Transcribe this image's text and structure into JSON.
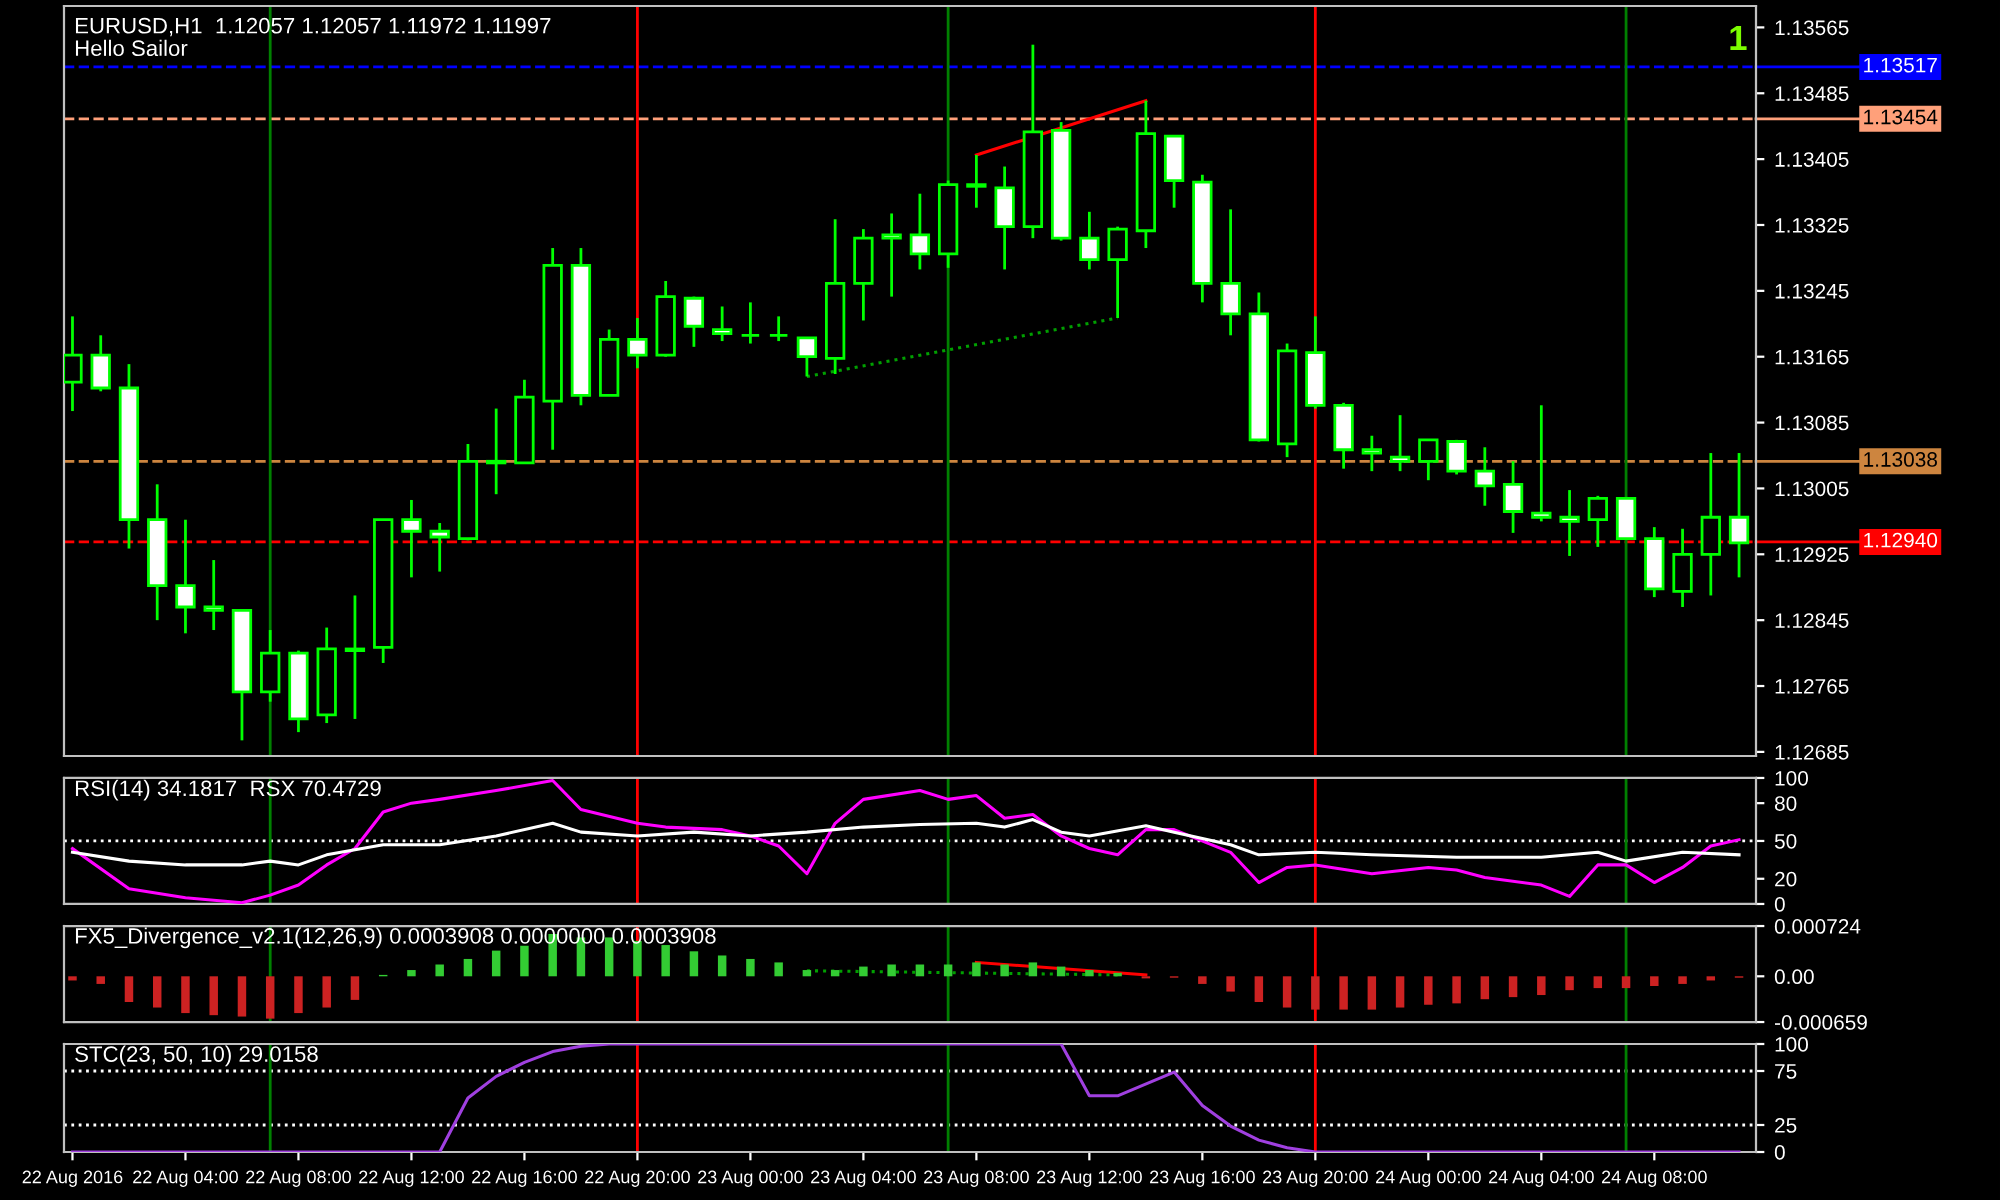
{
  "chart_data": [
    {
      "type": "candlestick",
      "title": "EURUSD,H1  1.12057 1.12057 1.11972 1.11997",
      "annotations": [
        "Hello Sailor",
        "1"
      ],
      "color": "#00ff00",
      "x": [
        "2016-08-22T00:00",
        "2016-08-22T01:00",
        "2016-08-22T02:00",
        "2016-08-22T03:00",
        "2016-08-22T04:00",
        "2016-08-22T05:00",
        "2016-08-22T06:00",
        "2016-08-22T07:00",
        "2016-08-22T08:00",
        "2016-08-22T09:00",
        "2016-08-22T10:00",
        "2016-08-22T11:00",
        "2016-08-22T12:00",
        "2016-08-22T13:00",
        "2016-08-22T14:00",
        "2016-08-22T15:00",
        "2016-08-22T16:00",
        "2016-08-22T17:00",
        "2016-08-22T18:00",
        "2016-08-22T19:00",
        "2016-08-22T20:00",
        "2016-08-22T21:00",
        "2016-08-22T22:00",
        "2016-08-22T23:00",
        "2016-08-23T00:00",
        "2016-08-23T01:00",
        "2016-08-23T02:00",
        "2016-08-23T03:00",
        "2016-08-23T04:00",
        "2016-08-23T05:00",
        "2016-08-23T06:00",
        "2016-08-23T07:00",
        "2016-08-23T08:00",
        "2016-08-23T09:00",
        "2016-08-23T10:00",
        "2016-08-23T11:00",
        "2016-08-23T12:00",
        "2016-08-23T13:00",
        "2016-08-23T14:00",
        "2016-08-23T15:00",
        "2016-08-23T16:00",
        "2016-08-23T17:00",
        "2016-08-23T18:00",
        "2016-08-23T19:00",
        "2016-08-23T20:00",
        "2016-08-23T21:00",
        "2016-08-23T22:00",
        "2016-08-23T23:00",
        "2016-08-24T00:00",
        "2016-08-24T01:00",
        "2016-08-24T02:00",
        "2016-08-24T03:00",
        "2016-08-24T04:00",
        "2016-08-24T05:00",
        "2016-08-24T06:00",
        "2016-08-24T07:00",
        "2016-08-24T08:00",
        "2016-08-24T09:00",
        "2016-08-24T10:00",
        "2016-08-24T11:00"
      ],
      "ohlc": [
        [
          1.13134,
          1.13214,
          1.13099,
          1.13167
        ],
        [
          1.13167,
          1.13191,
          1.13123,
          1.13127
        ],
        [
          1.13127,
          1.13156,
          1.12932,
          1.12967
        ],
        [
          1.12967,
          1.1301,
          1.12845,
          1.12887
        ],
        [
          1.12887,
          1.12967,
          1.12829,
          1.12861
        ],
        [
          1.12861,
          1.12918,
          1.12833,
          1.12857
        ],
        [
          1.12857,
          1.12857,
          1.12699,
          1.12758
        ],
        [
          1.12758,
          1.12833,
          1.12746,
          1.12805
        ],
        [
          1.12805,
          1.12808,
          1.12709,
          1.12725
        ],
        [
          1.1273,
          1.12836,
          1.1272,
          1.1281
        ],
        [
          1.12808,
          1.12875,
          1.12725,
          1.1281
        ],
        [
          1.12812,
          1.12967,
          1.12793,
          1.12967
        ],
        [
          1.12967,
          1.12991,
          1.12897,
          1.12953
        ],
        [
          1.12953,
          1.12963,
          1.12904,
          1.12946
        ],
        [
          1.12944,
          1.13059,
          1.12942,
          1.13038
        ],
        [
          1.13038,
          1.13102,
          1.12998,
          1.13036
        ],
        [
          1.13036,
          1.13137,
          1.13036,
          1.13116
        ],
        [
          1.13111,
          1.13297,
          1.13052,
          1.13276
        ],
        [
          1.13276,
          1.13297,
          1.13106,
          1.13118
        ],
        [
          1.13118,
          1.13198,
          1.13118,
          1.13186
        ],
        [
          1.13186,
          1.13212,
          1.13151,
          1.13167
        ],
        [
          1.13167,
          1.13257,
          1.13165,
          1.13238
        ],
        [
          1.13236,
          1.13238,
          1.13177,
          1.13202
        ],
        [
          1.13198,
          1.13226,
          1.13184,
          1.13193
        ],
        [
          1.13191,
          1.13231,
          1.13181,
          1.13191
        ],
        [
          1.13191,
          1.13214,
          1.13184,
          1.13191
        ],
        [
          1.13188,
          1.13188,
          1.13141,
          1.13165
        ],
        [
          1.13163,
          1.13332,
          1.13144,
          1.13254
        ],
        [
          1.13254,
          1.1332,
          1.13209,
          1.13309
        ],
        [
          1.13313,
          1.13339,
          1.13238,
          1.13309
        ],
        [
          1.13313,
          1.13363,
          1.13271,
          1.1329
        ],
        [
          1.1329,
          1.13379,
          1.13273,
          1.13374
        ],
        [
          1.13374,
          1.1341,
          1.13346,
          1.13372
        ],
        [
          1.1337,
          1.13396,
          1.13271,
          1.13323
        ],
        [
          1.13323,
          1.13544,
          1.13309,
          1.13438
        ],
        [
          1.1344,
          1.1345,
          1.13306,
          1.13309
        ],
        [
          1.13309,
          1.13341,
          1.13271,
          1.13283
        ],
        [
          1.13283,
          1.13323,
          1.13212,
          1.1332
        ],
        [
          1.13318,
          1.13476,
          1.13297,
          1.13436
        ],
        [
          1.13433,
          1.13433,
          1.13346,
          1.13379
        ],
        [
          1.13377,
          1.13386,
          1.13231,
          1.13254
        ],
        [
          1.13254,
          1.13344,
          1.13191,
          1.13217
        ],
        [
          1.13217,
          1.13243,
          1.13062,
          1.13064
        ],
        [
          1.13059,
          1.13181,
          1.13043,
          1.13172
        ],
        [
          1.1317,
          1.13214,
          1.13102,
          1.13106
        ],
        [
          1.13106,
          1.13109,
          1.13029,
          1.13052
        ],
        [
          1.13052,
          1.13069,
          1.13026,
          1.13048
        ],
        [
          1.13043,
          1.13094,
          1.13026,
          1.13038
        ],
        [
          1.13038,
          1.13064,
          1.13015,
          1.13064
        ],
        [
          1.13062,
          1.13064,
          1.13022,
          1.13026
        ],
        [
          1.13026,
          1.13055,
          1.12984,
          1.13008
        ],
        [
          1.1301,
          1.13038,
          1.12951,
          1.12977
        ],
        [
          1.12975,
          1.13106,
          1.12965,
          1.1297
        ],
        [
          1.1297,
          1.13003,
          1.12923,
          1.12965
        ],
        [
          1.12967,
          1.12996,
          1.12934,
          1.12993
        ],
        [
          1.12993,
          1.12993,
          1.12944,
          1.12944
        ],
        [
          1.12944,
          1.12958,
          1.12873,
          1.12883
        ],
        [
          1.1288,
          1.12956,
          1.12861,
          1.12925
        ],
        [
          1.12925,
          1.13048,
          1.12875,
          1.1297
        ],
        [
          1.1297,
          1.13048,
          1.12897,
          1.12939
        ]
      ],
      "series": [
        {
          "type": "line",
          "color": "#ff0000",
          "x": [
            "2016-08-23T08:00",
            "2016-08-23T14:00"
          ],
          "values": [
            1.1341,
            1.13476
          ]
        },
        {
          "type": "line",
          "color": "#00a000",
          "line_style": "dotted",
          "x": [
            "2016-08-23T02:00",
            "2016-08-23T13:00"
          ],
          "values": [
            1.13141,
            1.13212
          ]
        }
      ],
      "ref_lines": [
        {
          "axis": "y",
          "value": 1.13517,
          "label": "1.13517",
          "color": "#0000ff",
          "line_style": "dashed"
        },
        {
          "axis": "y",
          "value": 1.13454,
          "label": "1.13454",
          "color": "#ffa07a",
          "line_style": "dashed"
        },
        {
          "axis": "y",
          "value": 1.13038,
          "label": "1.13038",
          "color": "#cd853f",
          "line_style": "dashed"
        },
        {
          "axis": "y",
          "value": 1.1294,
          "label": "1.12940",
          "color": "#ff0000",
          "line_style": "dashed"
        },
        {
          "axis": "x",
          "value": "2016-08-22T07:00",
          "color": "#008000"
        },
        {
          "axis": "x",
          "value": "2016-08-22T20:00",
          "color": "#ff0000"
        },
        {
          "axis": "x",
          "value": "2016-08-23T07:00",
          "color": "#008000"
        },
        {
          "axis": "x",
          "value": "2016-08-23T20:00",
          "color": "#ff0000"
        },
        {
          "axis": "x",
          "value": "2016-08-24T07:00",
          "color": "#008000"
        }
      ],
      "xlim": [
        "2016-08-21T23:42",
        "2016-08-24T11:36"
      ],
      "ylim": [
        1.1268,
        1.13591
      ],
      "yticks": [
        1.13565,
        1.13485,
        1.13405,
        1.13325,
        1.13245,
        1.13165,
        1.13085,
        1.13005,
        1.12925,
        1.12845,
        1.12765,
        1.12685
      ],
      "tick_labels": "y"
    },
    {
      "type": "line",
      "title": "RSI(14) 34.1817  RSX 70.4729",
      "series": [
        {
          "color": "#ff00ff",
          "x": [
            "2016-08-22T00:00",
            "2016-08-22T02:00",
            "2016-08-22T04:00",
            "2016-08-22T06:00",
            "2016-08-22T07:00",
            "2016-08-22T08:00",
            "2016-08-22T09:00",
            "2016-08-22T10:00",
            "2016-08-22T11:00",
            "2016-08-22T12:00",
            "2016-08-22T13:00",
            "2016-08-22T15:00",
            "2016-08-22T17:00",
            "2016-08-22T18:00",
            "2016-08-22T20:00",
            "2016-08-22T21:00",
            "2016-08-22T23:00",
            "2016-08-23T00:00",
            "2016-08-23T01:00",
            "2016-08-23T02:00",
            "2016-08-23T03:00",
            "2016-08-23T04:00",
            "2016-08-23T06:00",
            "2016-08-23T07:00",
            "2016-08-23T08:00",
            "2016-08-23T09:00",
            "2016-08-23T10:00",
            "2016-08-23T11:00",
            "2016-08-23T12:00",
            "2016-08-23T13:00",
            "2016-08-23T14:00",
            "2016-08-23T15:00",
            "2016-08-23T17:00",
            "2016-08-23T18:00",
            "2016-08-23T19:00",
            "2016-08-23T20:00",
            "2016-08-23T22:00",
            "2016-08-24T00:00",
            "2016-08-24T01:00",
            "2016-08-24T02:00",
            "2016-08-24T04:00",
            "2016-08-24T05:00",
            "2016-08-24T06:00",
            "2016-08-24T07:00",
            "2016-08-24T08:00",
            "2016-08-24T09:00",
            "2016-08-24T10:00",
            "2016-08-24T11:00"
          ],
          "values": [
            44,
            12,
            5,
            1,
            7,
            15,
            31,
            44,
            73,
            80,
            83,
            90,
            98,
            75,
            64,
            61,
            59,
            54,
            46,
            24,
            64,
            83,
            90,
            83,
            86,
            68,
            71,
            54,
            44,
            39,
            59,
            59,
            41,
            17,
            29,
            31,
            24,
            29,
            27,
            21,
            15,
            6,
            31,
            31,
            17,
            29,
            46,
            51
          ]
        },
        {
          "color": "#ffffff",
          "x": [
            "2016-08-22T00:00",
            "2016-08-22T02:00",
            "2016-08-22T04:00",
            "2016-08-22T06:00",
            "2016-08-22T07:00",
            "2016-08-22T08:00",
            "2016-08-22T09:00",
            "2016-08-22T11:00",
            "2016-08-22T13:00",
            "2016-08-22T15:00",
            "2016-08-22T17:00",
            "2016-08-22T18:00",
            "2016-08-22T20:00",
            "2016-08-22T22:00",
            "2016-08-23T00:00",
            "2016-08-23T02:00",
            "2016-08-23T04:00",
            "2016-08-23T06:00",
            "2016-08-23T08:00",
            "2016-08-23T09:00",
            "2016-08-23T10:00",
            "2016-08-23T11:00",
            "2016-08-23T12:00",
            "2016-08-23T14:00",
            "2016-08-23T15:00",
            "2016-08-23T17:00",
            "2016-08-23T18:00",
            "2016-08-23T20:00",
            "2016-08-23T22:00",
            "2016-08-24T01:00",
            "2016-08-24T04:00",
            "2016-08-24T06:00",
            "2016-08-24T07:00",
            "2016-08-24T09:00",
            "2016-08-24T11:00"
          ],
          "values": [
            41,
            34,
            31,
            31,
            34,
            31,
            39,
            47,
            47,
            54,
            64,
            57,
            54,
            57,
            54,
            57,
            61,
            63,
            64,
            61,
            67,
            57,
            54,
            62,
            57,
            47,
            39,
            41,
            39,
            37,
            37,
            41,
            34,
            41,
            39
          ]
        }
      ],
      "ref_lines": [
        {
          "axis": "y",
          "value": 50,
          "color": "#ffffff",
          "line_style": "dotted"
        },
        {
          "axis": "x",
          "value": "2016-08-22T07:00",
          "color": "#008000"
        },
        {
          "axis": "x",
          "value": "2016-08-22T20:00",
          "color": "#ff0000"
        },
        {
          "axis": "x",
          "value": "2016-08-23T07:00",
          "color": "#008000"
        },
        {
          "axis": "x",
          "value": "2016-08-23T20:00",
          "color": "#ff0000"
        },
        {
          "axis": "x",
          "value": "2016-08-24T07:00",
          "color": "#008000"
        }
      ],
      "xlim": [
        "2016-08-21T23:42",
        "2016-08-24T11:36"
      ],
      "ylim": [
        0,
        100
      ],
      "yticks": [
        100,
        80,
        50,
        20,
        0
      ],
      "tick_labels": "y"
    },
    {
      "type": "bar",
      "title": "FX5_Divergence_v2.1(12,26,9) 0.0003908 0.0000000 0.0003908",
      "x": [
        "2016-08-22T00:00",
        "2016-08-22T01:00",
        "2016-08-22T02:00",
        "2016-08-22T03:00",
        "2016-08-22T04:00",
        "2016-08-22T05:00",
        "2016-08-22T06:00",
        "2016-08-22T07:00",
        "2016-08-22T08:00",
        "2016-08-22T09:00",
        "2016-08-22T10:00",
        "2016-08-22T11:00",
        "2016-08-22T12:00",
        "2016-08-22T13:00",
        "2016-08-22T14:00",
        "2016-08-22T15:00",
        "2016-08-22T16:00",
        "2016-08-22T17:00",
        "2016-08-22T18:00",
        "2016-08-22T19:00",
        "2016-08-22T20:00",
        "2016-08-22T21:00",
        "2016-08-22T22:00",
        "2016-08-22T23:00",
        "2016-08-23T00:00",
        "2016-08-23T01:00",
        "2016-08-23T02:00",
        "2016-08-23T03:00",
        "2016-08-23T04:00",
        "2016-08-23T05:00",
        "2016-08-23T06:00",
        "2016-08-23T07:00",
        "2016-08-23T08:00",
        "2016-08-23T09:00",
        "2016-08-23T10:00",
        "2016-08-23T11:00",
        "2016-08-23T12:00",
        "2016-08-23T13:00",
        "2016-08-23T14:00",
        "2016-08-23T15:00",
        "2016-08-23T16:00",
        "2016-08-23T17:00",
        "2016-08-23T18:00",
        "2016-08-23T19:00",
        "2016-08-23T20:00",
        "2016-08-23T21:00",
        "2016-08-23T22:00",
        "2016-08-23T23:00",
        "2016-08-24T00:00",
        "2016-08-24T01:00",
        "2016-08-24T02:00",
        "2016-08-24T03:00",
        "2016-08-24T04:00",
        "2016-08-24T05:00",
        "2016-08-24T06:00",
        "2016-08-24T07:00",
        "2016-08-24T08:00",
        "2016-08-24T09:00",
        "2016-08-24T10:00",
        "2016-08-24T11:00"
      ],
      "values": [
        -6e-05,
        -0.00011,
        -0.00037,
        -0.00045,
        -0.00053,
        -0.00056,
        -0.00058,
        -0.00061,
        -0.00053,
        -0.00045,
        -0.00034,
        2e-05,
        9e-05,
        0.00017,
        0.00025,
        0.00037,
        0.00044,
        0.00061,
        0.00056,
        0.00056,
        0.00051,
        0.00045,
        0.00036,
        0.0003,
        0.00025,
        0.0002,
        9e-05,
        9e-05,
        0.00014,
        0.00017,
        0.00017,
        0.00017,
        0.0002,
        0.00017,
        0.0002,
        0.00014,
        9e-05,
        5e-05,
        -3e-05,
        -2e-05,
        -0.00011,
        -0.00022,
        -0.00037,
        -0.00045,
        -0.00048,
        -0.00048,
        -0.00048,
        -0.00045,
        -0.00041,
        -0.00039,
        -0.00033,
        -0.0003,
        -0.00027,
        -0.0002,
        -0.00017,
        -0.00017,
        -0.00014,
        -0.00011,
        -6e-05,
        -2e-05
      ],
      "colors": [
        "#cc2222",
        "#cc2222",
        "#cc2222",
        "#cc2222",
        "#cc2222",
        "#cc2222",
        "#cc2222",
        "#cc2222",
        "#cc2222",
        "#cc2222",
        "#cc2222",
        "#33cc33",
        "#33cc33",
        "#33cc33",
        "#33cc33",
        "#33cc33",
        "#33cc33",
        "#33cc33",
        "#33cc33",
        "#33cc33",
        "#33cc33",
        "#33cc33",
        "#33cc33",
        "#33cc33",
        "#33cc33",
        "#33cc33",
        "#33cc33",
        "#33cc33",
        "#33cc33",
        "#33cc33",
        "#33cc33",
        "#33cc33",
        "#33cc33",
        "#33cc33",
        "#33cc33",
        "#33cc33",
        "#33cc33",
        "#33cc33",
        "#cc2222",
        "#cc2222",
        "#cc2222",
        "#cc2222",
        "#cc2222",
        "#cc2222",
        "#cc2222",
        "#cc2222",
        "#cc2222",
        "#cc2222",
        "#cc2222",
        "#cc2222",
        "#cc2222",
        "#cc2222",
        "#cc2222",
        "#cc2222",
        "#cc2222",
        "#cc2222",
        "#cc2222",
        "#cc2222",
        "#cc2222",
        "#cc2222"
      ],
      "series": [
        {
          "type": "line",
          "color": "#ff0000",
          "x": [
            "2016-08-23T08:00",
            "2016-08-23T14:00"
          ],
          "values": [
            0.0002,
            2e-05
          ]
        },
        {
          "type": "line",
          "color": "#00a000",
          "line_style": "dotted",
          "x": [
            "2016-08-23T02:00",
            "2016-08-23T13:00"
          ],
          "values": [
            8e-05,
            2e-05
          ]
        }
      ],
      "ref_lines": [
        {
          "axis": "x",
          "value": "2016-08-22T07:00",
          "color": "#008000"
        },
        {
          "axis": "x",
          "value": "2016-08-22T20:00",
          "color": "#ff0000"
        },
        {
          "axis": "x",
          "value": "2016-08-23T07:00",
          "color": "#008000"
        },
        {
          "axis": "x",
          "value": "2016-08-23T20:00",
          "color": "#ff0000"
        },
        {
          "axis": "x",
          "value": "2016-08-24T07:00",
          "color": "#008000"
        }
      ],
      "xlim": [
        "2016-08-21T23:42",
        "2016-08-24T11:36"
      ],
      "ylim": [
        -0.000659,
        0.000724
      ],
      "yticks": [
        0.000724,
        {
          "value": 0,
          "label": "0.00"
        },
        -0.000659
      ],
      "tick_labels": "y"
    },
    {
      "type": "line",
      "title": "STC(23, 50, 10) 29.0158",
      "series": [
        {
          "color": "#a040e0",
          "x": [
            "2016-08-22T00:00",
            "2016-08-22T13:00",
            "2016-08-22T14:00",
            "2016-08-22T15:00",
            "2016-08-22T16:00",
            "2016-08-22T17:00",
            "2016-08-22T18:00",
            "2016-08-22T19:00",
            "2016-08-23T11:00",
            "2016-08-23T12:00",
            "2016-08-23T13:00",
            "2016-08-23T15:00",
            "2016-08-23T16:00",
            "2016-08-23T17:00",
            "2016-08-23T18:00",
            "2016-08-23T19:00",
            "2016-08-23T20:00",
            "2016-08-24T11:00"
          ],
          "values": [
            0,
            0,
            50,
            70,
            83,
            93,
            98,
            100,
            100,
            52,
            52,
            74,
            43,
            24,
            11,
            4,
            0,
            0
          ]
        }
      ],
      "ref_lines": [
        {
          "axis": "y",
          "value": 75,
          "color": "#ffffff",
          "line_style": "dotted"
        },
        {
          "axis": "y",
          "value": 25,
          "color": "#ffffff",
          "line_style": "dotted"
        },
        {
          "axis": "x",
          "value": "2016-08-22T07:00",
          "color": "#008000"
        },
        {
          "axis": "x",
          "value": "2016-08-22T20:00",
          "color": "#ff0000"
        },
        {
          "axis": "x",
          "value": "2016-08-23T07:00",
          "color": "#008000"
        },
        {
          "axis": "x",
          "value": "2016-08-23T20:00",
          "color": "#ff0000"
        },
        {
          "axis": "x",
          "value": "2016-08-24T07:00",
          "color": "#008000"
        }
      ],
      "xlim": [
        "2016-08-21T23:42",
        "2016-08-24T11:36"
      ],
      "ylim": [
        0,
        100
      ],
      "yticks": [
        100,
        75,
        25,
        0
      ],
      "xticks": [
        {
          "value": "2016-08-22T00:00",
          "label": "22 Aug 2016"
        },
        {
          "value": "2016-08-22T04:00",
          "label": "22 Aug 04:00"
        },
        {
          "value": "2016-08-22T08:00",
          "label": "22 Aug 08:00"
        },
        {
          "value": "2016-08-22T12:00",
          "label": "22 Aug 12:00"
        },
        {
          "value": "2016-08-22T16:00",
          "label": "22 Aug 16:00"
        },
        {
          "value": "2016-08-22T20:00",
          "label": "22 Aug 20:00"
        },
        {
          "value": "2016-08-23T00:00",
          "label": "23 Aug 00:00"
        },
        {
          "value": "2016-08-23T04:00",
          "label": "23 Aug 04:00"
        },
        {
          "value": "2016-08-23T08:00",
          "label": "23 Aug 08:00"
        },
        {
          "value": "2016-08-23T12:00",
          "label": "23 Aug 12:00"
        },
        {
          "value": "2016-08-23T16:00",
          "label": "23 Aug 16:00"
        },
        {
          "value": "2016-08-23T20:00",
          "label": "23 Aug 20:00"
        },
        {
          "value": "2016-08-24T00:00",
          "label": "24 Aug 00:00"
        },
        {
          "value": "2016-08-24T04:00",
          "label": "24 Aug 04:00"
        },
        {
          "value": "2016-08-24T08:00",
          "label": "24 Aug 08:00"
        }
      ]
    }
  ]
}
